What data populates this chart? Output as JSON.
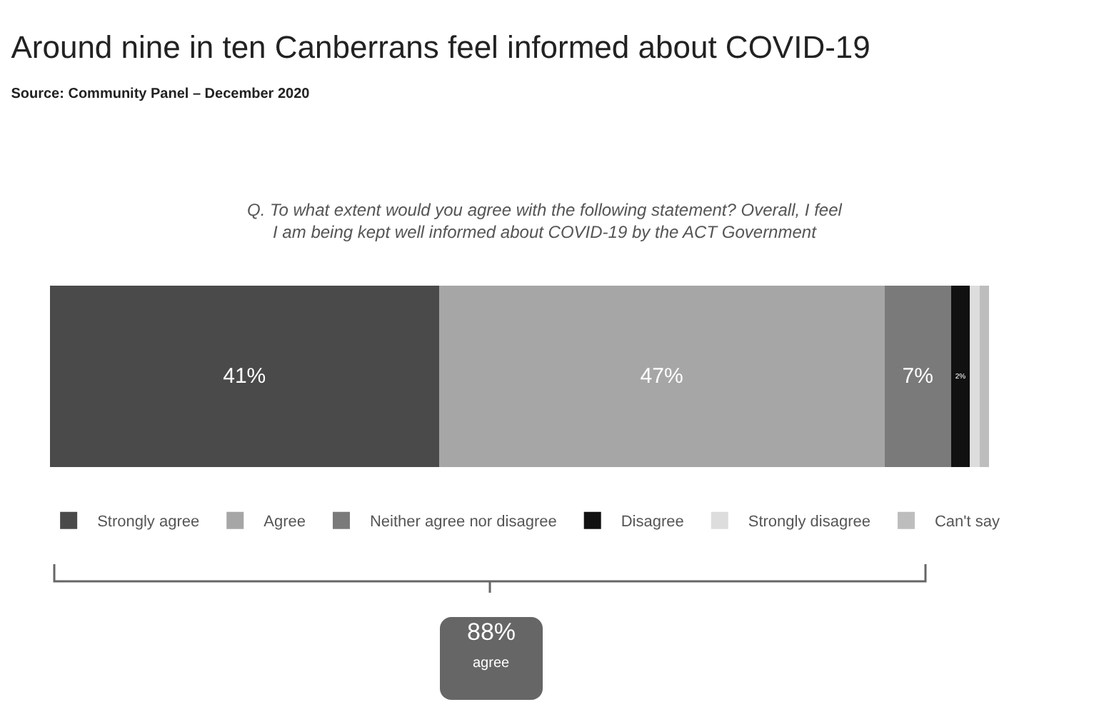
{
  "chart_data": {
    "type": "bar",
    "title": "Around nine in ten Canberrans feel informed about COVID-19",
    "subtitle": "Source: Community Panel – December 2020",
    "orientation": "horizontal",
    "stacked": true,
    "categories": [
      null
    ],
    "tick_labels": false,
    "grid": false,
    "legend": "bottom",
    "series": [
      {
        "name": "Strongly agree",
        "color": "#4a4a4a",
        "values": [
          41
        ],
        "value_labels": [
          "41%"
        ]
      },
      {
        "name": "Agree",
        "color": "#a6a6a6",
        "values": [
          47
        ],
        "value_labels": [
          "47%"
        ]
      },
      {
        "name": "Neither agree nor disagree",
        "color": "#7a7a7a",
        "values": [
          7
        ],
        "value_labels": [
          "7%"
        ]
      },
      {
        "name": "Disagree",
        "color": "#111111",
        "values": [
          2
        ],
        "value_labels": [
          "2%"
        ]
      },
      {
        "name": "Strongly disagree",
        "color": "#dddddd",
        "values": [
          1
        ],
        "value_labels": [
          null
        ]
      },
      {
        "name": "Can't say",
        "color": "#bdbdbd",
        "values": [
          1
        ],
        "value_labels": [
          null
        ]
      }
    ],
    "annotations": [
      "Q. To what extent would you agree with the following statement? Overall, I feel I am being kept well informed about COVID-19 by the ACT Government",
      "88%",
      "agree"
    ]
  }
}
